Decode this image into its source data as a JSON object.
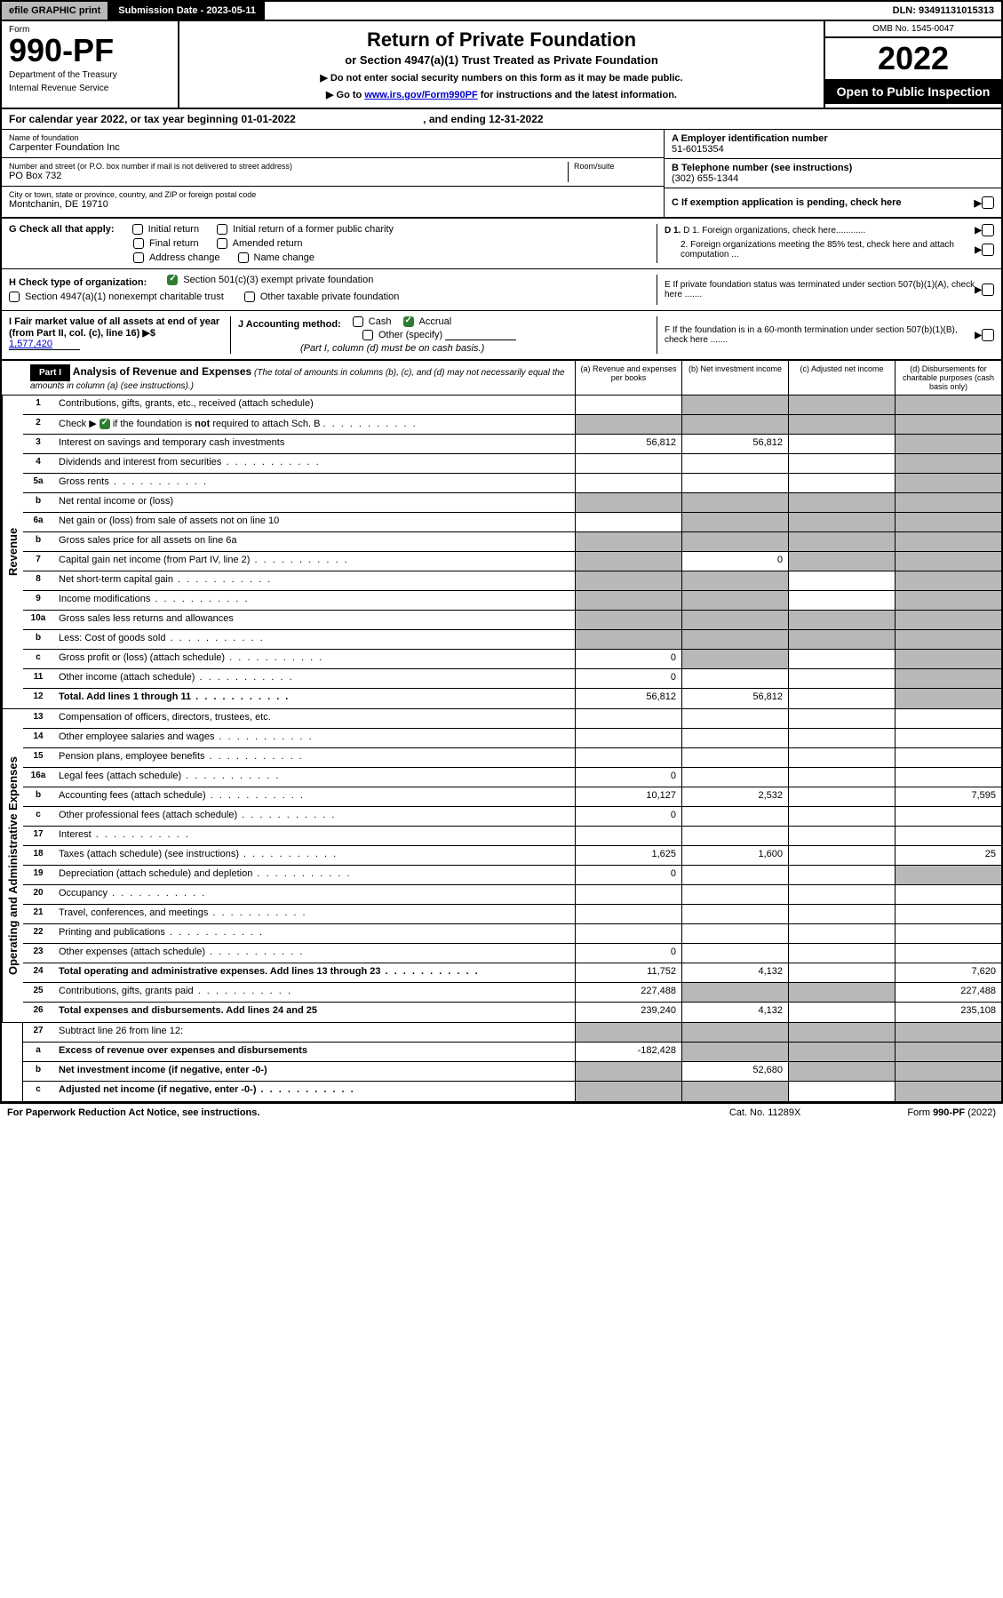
{
  "top": {
    "efile": "efile GRAPHIC print",
    "submission": "Submission Date - 2023-05-11",
    "dln": "DLN: 93491131015313"
  },
  "header": {
    "form_label": "Form",
    "form_number": "990-PF",
    "dept1": "Department of the Treasury",
    "dept2": "Internal Revenue Service",
    "title": "Return of Private Foundation",
    "subtitle": "or Section 4947(a)(1) Trust Treated as Private Foundation",
    "instr1": "▶ Do not enter social security numbers on this form as it may be made public.",
    "instr2": "▶ Go to ",
    "instr2_link": "www.irs.gov/Form990PF",
    "instr2_after": " for instructions and the latest information.",
    "omb": "OMB No. 1545-0047",
    "year": "2022",
    "open": "Open to Public Inspection"
  },
  "year_row": {
    "text1": "For calendar year 2022, or tax year beginning 01-01-2022",
    "text2": ", and ending 12-31-2022"
  },
  "info": {
    "name_label": "Name of foundation",
    "name": "Carpenter Foundation Inc",
    "addr_label": "Number and street (or P.O. box number if mail is not delivered to street address)",
    "addr": "PO Box 732",
    "room_label": "Room/suite",
    "city_label": "City or town, state or province, country, and ZIP or foreign postal code",
    "city": "Montchanin, DE  19710",
    "ein_label": "A Employer identification number",
    "ein": "51-6015354",
    "phone_label": "B Telephone number (see instructions)",
    "phone": "(302) 655-1344",
    "c_label": "C If exemption application is pending, check here",
    "d1": "D 1. Foreign organizations, check here............",
    "d2": "2. Foreign organizations meeting the 85% test, check here and attach computation ...",
    "e_label": "E  If private foundation status was terminated under section 507(b)(1)(A), check here .......",
    "f_label": "F  If the foundation is in a 60-month termination under section 507(b)(1)(B), check here ......."
  },
  "g": {
    "label": "G Check all that apply:",
    "initial": "Initial return",
    "initial_former": "Initial return of a former public charity",
    "final": "Final return",
    "amended": "Amended return",
    "address": "Address change",
    "name_change": "Name change"
  },
  "h": {
    "label": "H Check type of organization:",
    "opt1": "Section 501(c)(3) exempt private foundation",
    "opt2": "Section 4947(a)(1) nonexempt charitable trust",
    "opt3": "Other taxable private foundation"
  },
  "i": {
    "label": "I Fair market value of all assets at end of year (from Part II, col. (c), line 16)",
    "arrow": "▶$",
    "value": "1,577,420"
  },
  "j": {
    "label": "J Accounting method:",
    "cash": "Cash",
    "accrual": "Accrual",
    "other": "Other (specify)",
    "note": "(Part I, column (d) must be on cash basis.)"
  },
  "part1": {
    "label": "Part I",
    "title": "Analysis of Revenue and Expenses",
    "note": "(The total of amounts in columns (b), (c), and (d) may not necessarily equal the amounts in column (a) (see instructions).)",
    "col_a": "(a)   Revenue and expenses per books",
    "col_b": "(b)  Net investment income",
    "col_c": "(c)  Adjusted net income",
    "col_d": "(d)  Disbursements for charitable purposes (cash basis only)"
  },
  "side_labels": {
    "revenue": "Revenue",
    "expenses": "Operating and Administrative Expenses"
  },
  "rows": [
    {
      "n": "1",
      "label": "Contributions, gifts, grants, etc., received (attach schedule)",
      "a": "",
      "b": "",
      "c": "",
      "d": "",
      "sa": false,
      "sb": true,
      "sc": true,
      "sd": true
    },
    {
      "n": "2",
      "label": "Check ▶ ☑ if the foundation is not required to attach Sch. B",
      "a": "",
      "b": "",
      "c": "",
      "d": "",
      "sa": true,
      "sb": true,
      "sc": true,
      "sd": true,
      "dotted": true,
      "checked": true
    },
    {
      "n": "3",
      "label": "Interest on savings and temporary cash investments",
      "a": "56,812",
      "b": "56,812",
      "c": "",
      "d": "",
      "sd": true
    },
    {
      "n": "4",
      "label": "Dividends and interest from securities",
      "a": "",
      "b": "",
      "c": "",
      "d": "",
      "dotted": true,
      "sd": true
    },
    {
      "n": "5a",
      "label": "Gross rents",
      "a": "",
      "b": "",
      "c": "",
      "d": "",
      "dotted": true,
      "sd": true
    },
    {
      "n": "b",
      "label": "Net rental income or (loss)",
      "a": "",
      "b": "",
      "c": "",
      "d": "",
      "sa": true,
      "sb": true,
      "sc": true,
      "sd": true
    },
    {
      "n": "6a",
      "label": "Net gain or (loss) from sale of assets not on line 10",
      "a": "",
      "b": "",
      "c": "",
      "d": "",
      "sb": true,
      "sc": true,
      "sd": true
    },
    {
      "n": "b",
      "label": "Gross sales price for all assets on line 6a",
      "a": "",
      "b": "",
      "c": "",
      "d": "",
      "sa": true,
      "sb": true,
      "sc": true,
      "sd": true
    },
    {
      "n": "7",
      "label": "Capital gain net income (from Part IV, line 2)",
      "a": "",
      "b": "0",
      "c": "",
      "d": "",
      "sa": true,
      "sc": true,
      "sd": true,
      "dotted": true
    },
    {
      "n": "8",
      "label": "Net short-term capital gain",
      "a": "",
      "b": "",
      "c": "",
      "d": "",
      "sa": true,
      "sb": true,
      "sd": true,
      "dotted": true
    },
    {
      "n": "9",
      "label": "Income modifications",
      "a": "",
      "b": "",
      "c": "",
      "d": "",
      "sa": true,
      "sb": true,
      "sd": true,
      "dotted": true
    },
    {
      "n": "10a",
      "label": "Gross sales less returns and allowances",
      "a": "",
      "b": "",
      "c": "",
      "d": "",
      "sa": true,
      "sb": true,
      "sc": true,
      "sd": true
    },
    {
      "n": "b",
      "label": "Less: Cost of goods sold",
      "a": "",
      "b": "",
      "c": "",
      "d": "",
      "sa": true,
      "sb": true,
      "sc": true,
      "sd": true,
      "dotted": true
    },
    {
      "n": "c",
      "label": "Gross profit or (loss) (attach schedule)",
      "a": "0",
      "b": "",
      "c": "",
      "d": "",
      "sb": true,
      "sd": true,
      "dotted": true
    },
    {
      "n": "11",
      "label": "Other income (attach schedule)",
      "a": "0",
      "b": "",
      "c": "",
      "d": "",
      "sd": true,
      "dotted": true
    },
    {
      "n": "12",
      "label": "Total. Add lines 1 through 11",
      "a": "56,812",
      "b": "56,812",
      "c": "",
      "d": "",
      "bold": true,
      "sd": true,
      "dotted": true
    }
  ],
  "exp_rows": [
    {
      "n": "13",
      "label": "Compensation of officers, directors, trustees, etc.",
      "a": "",
      "b": "",
      "c": "",
      "d": ""
    },
    {
      "n": "14",
      "label": "Other employee salaries and wages",
      "a": "",
      "b": "",
      "c": "",
      "d": "",
      "dotted": true
    },
    {
      "n": "15",
      "label": "Pension plans, employee benefits",
      "a": "",
      "b": "",
      "c": "",
      "d": "",
      "dotted": true
    },
    {
      "n": "16a",
      "label": "Legal fees (attach schedule)",
      "a": "0",
      "b": "",
      "c": "",
      "d": "",
      "dotted": true
    },
    {
      "n": "b",
      "label": "Accounting fees (attach schedule)",
      "a": "10,127",
      "b": "2,532",
      "c": "",
      "d": "7,595",
      "dotted": true
    },
    {
      "n": "c",
      "label": "Other professional fees (attach schedule)",
      "a": "0",
      "b": "",
      "c": "",
      "d": "",
      "dotted": true
    },
    {
      "n": "17",
      "label": "Interest",
      "a": "",
      "b": "",
      "c": "",
      "d": "",
      "dotted": true
    },
    {
      "n": "18",
      "label": "Taxes (attach schedule) (see instructions)",
      "a": "1,625",
      "b": "1,600",
      "c": "",
      "d": "25",
      "dotted": true
    },
    {
      "n": "19",
      "label": "Depreciation (attach schedule) and depletion",
      "a": "0",
      "b": "",
      "c": "",
      "d": "",
      "sd": true,
      "dotted": true
    },
    {
      "n": "20",
      "label": "Occupancy",
      "a": "",
      "b": "",
      "c": "",
      "d": "",
      "dotted": true
    },
    {
      "n": "21",
      "label": "Travel, conferences, and meetings",
      "a": "",
      "b": "",
      "c": "",
      "d": "",
      "dotted": true
    },
    {
      "n": "22",
      "label": "Printing and publications",
      "a": "",
      "b": "",
      "c": "",
      "d": "",
      "dotted": true
    },
    {
      "n": "23",
      "label": "Other expenses (attach schedule)",
      "a": "0",
      "b": "",
      "c": "",
      "d": "",
      "dotted": true
    },
    {
      "n": "24",
      "label": "Total operating and administrative expenses. Add lines 13 through 23",
      "a": "11,752",
      "b": "4,132",
      "c": "",
      "d": "7,620",
      "bold": true,
      "dotted": true
    },
    {
      "n": "25",
      "label": "Contributions, gifts, grants paid",
      "a": "227,488",
      "b": "",
      "c": "",
      "d": "227,488",
      "sb": true,
      "sc": true,
      "dotted": true
    },
    {
      "n": "26",
      "label": "Total expenses and disbursements. Add lines 24 and 25",
      "a": "239,240",
      "b": "4,132",
      "c": "",
      "d": "235,108",
      "bold": true
    }
  ],
  "final_rows": [
    {
      "n": "27",
      "label": "Subtract line 26 from line 12:",
      "a": "",
      "b": "",
      "c": "",
      "d": "",
      "sa": true,
      "sb": true,
      "sc": true,
      "sd": true
    },
    {
      "n": "a",
      "label": "Excess of revenue over expenses and disbursements",
      "a": "-182,428",
      "b": "",
      "c": "",
      "d": "",
      "bold": true,
      "sb": true,
      "sc": true,
      "sd": true
    },
    {
      "n": "b",
      "label": "Net investment income (if negative, enter -0-)",
      "a": "",
      "b": "52,680",
      "c": "",
      "d": "",
      "bold": true,
      "sa": true,
      "sc": true,
      "sd": true
    },
    {
      "n": "c",
      "label": "Adjusted net income (if negative, enter -0-)",
      "a": "",
      "b": "",
      "c": "",
      "d": "",
      "bold": true,
      "sa": true,
      "sb": true,
      "sd": true,
      "dotted": true
    }
  ],
  "footer": {
    "left": "For Paperwork Reduction Act Notice, see instructions.",
    "center": "Cat. No. 11289X",
    "right": "Form 990-PF (2022)"
  }
}
